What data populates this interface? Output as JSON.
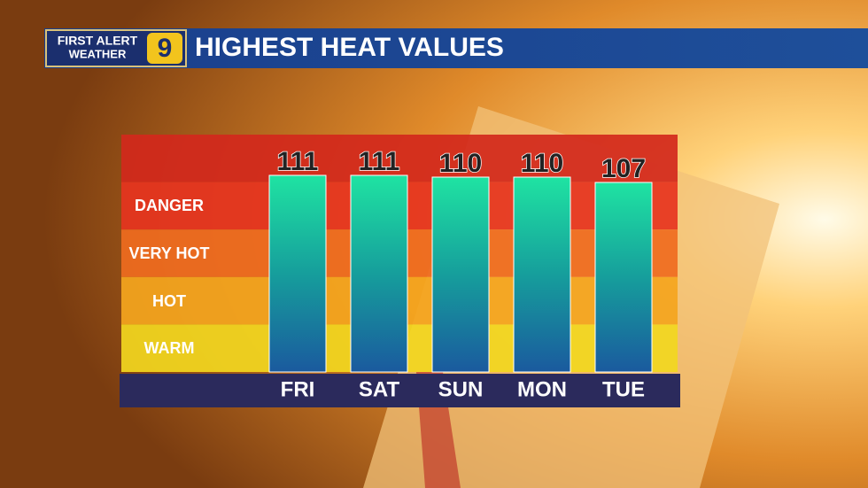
{
  "header": {
    "logo_top": "FIRST ALERT",
    "logo_bottom": "WEATHER",
    "logo_number": "9"
  },
  "chart_data": {
    "type": "bar",
    "title": "HIGHEST HEAT VALUES",
    "categories": [
      "FRI",
      "SAT",
      "SUN",
      "MON",
      "TUE"
    ],
    "values": [
      111,
      111,
      110,
      110,
      107
    ],
    "ylim": [
      0,
      134
    ],
    "zones": [
      {
        "label": "DANGER",
        "color": "#e6341f"
      },
      {
        "label": "VERY HOT",
        "color": "#ef6b1f"
      },
      {
        "label": "HOT",
        "color": "#f4a51e"
      },
      {
        "label": "WARM",
        "color": "#f2d71f"
      }
    ],
    "top_zone_color": "#d3281c"
  }
}
